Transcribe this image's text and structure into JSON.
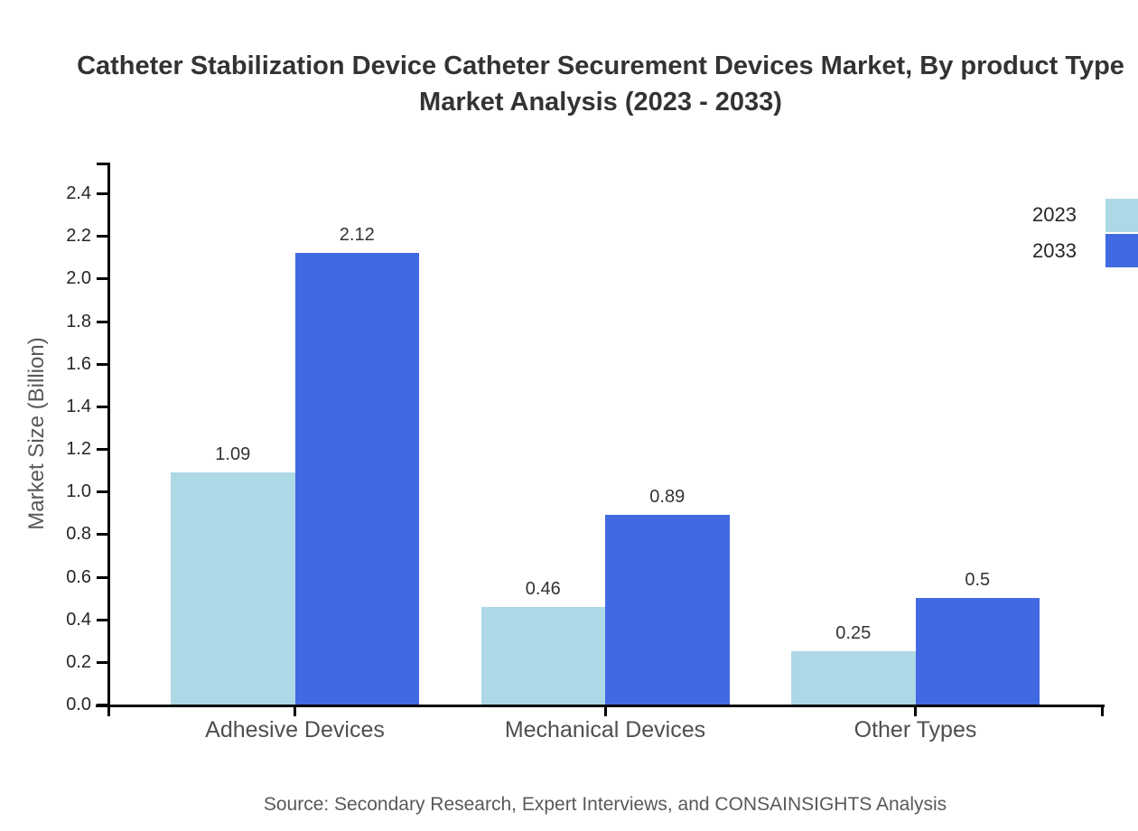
{
  "title": {
    "line1": "Catheter Stabilization Device Catheter Securement Devices Market, By product Type",
    "line2": "Market Analysis (2023 - 2033)"
  },
  "source": {
    "text": "Source: Secondary Research, Expert Interviews, and CONSAINSIGHTS Analysis"
  },
  "legend": {
    "position": "upper right",
    "items": [
      {
        "label": "2023",
        "color": "#ADD8E6"
      },
      {
        "label": "2033",
        "color": "#4169E1"
      }
    ]
  },
  "chart_data": {
    "type": "bar",
    "title": "Catheter Stabilization Device Catheter Securement Devices Market, By product Type Market Analysis (2023 - 2033)",
    "categories": [
      "Adhesive Devices",
      "Mechanical Devices",
      "Other Types"
    ],
    "series": [
      {
        "name": "2023",
        "color": "#ADD8E6",
        "values": [
          1.09,
          0.46,
          0.25
        ]
      },
      {
        "name": "2033",
        "color": "#4169E1",
        "values": [
          2.12,
          0.89,
          0.5
        ]
      }
    ],
    "xlabel": "",
    "ylabel": "Market Size (Billion)",
    "ylim": [
      0,
      2.55
    ],
    "yticks": [
      0,
      0.2,
      0.4,
      0.6,
      0.8,
      1,
      1.2,
      1.4,
      1.6,
      1.8,
      2,
      2.2,
      2.4
    ],
    "grid": false,
    "bar_value_labels": true,
    "legend_position": "upper right"
  }
}
